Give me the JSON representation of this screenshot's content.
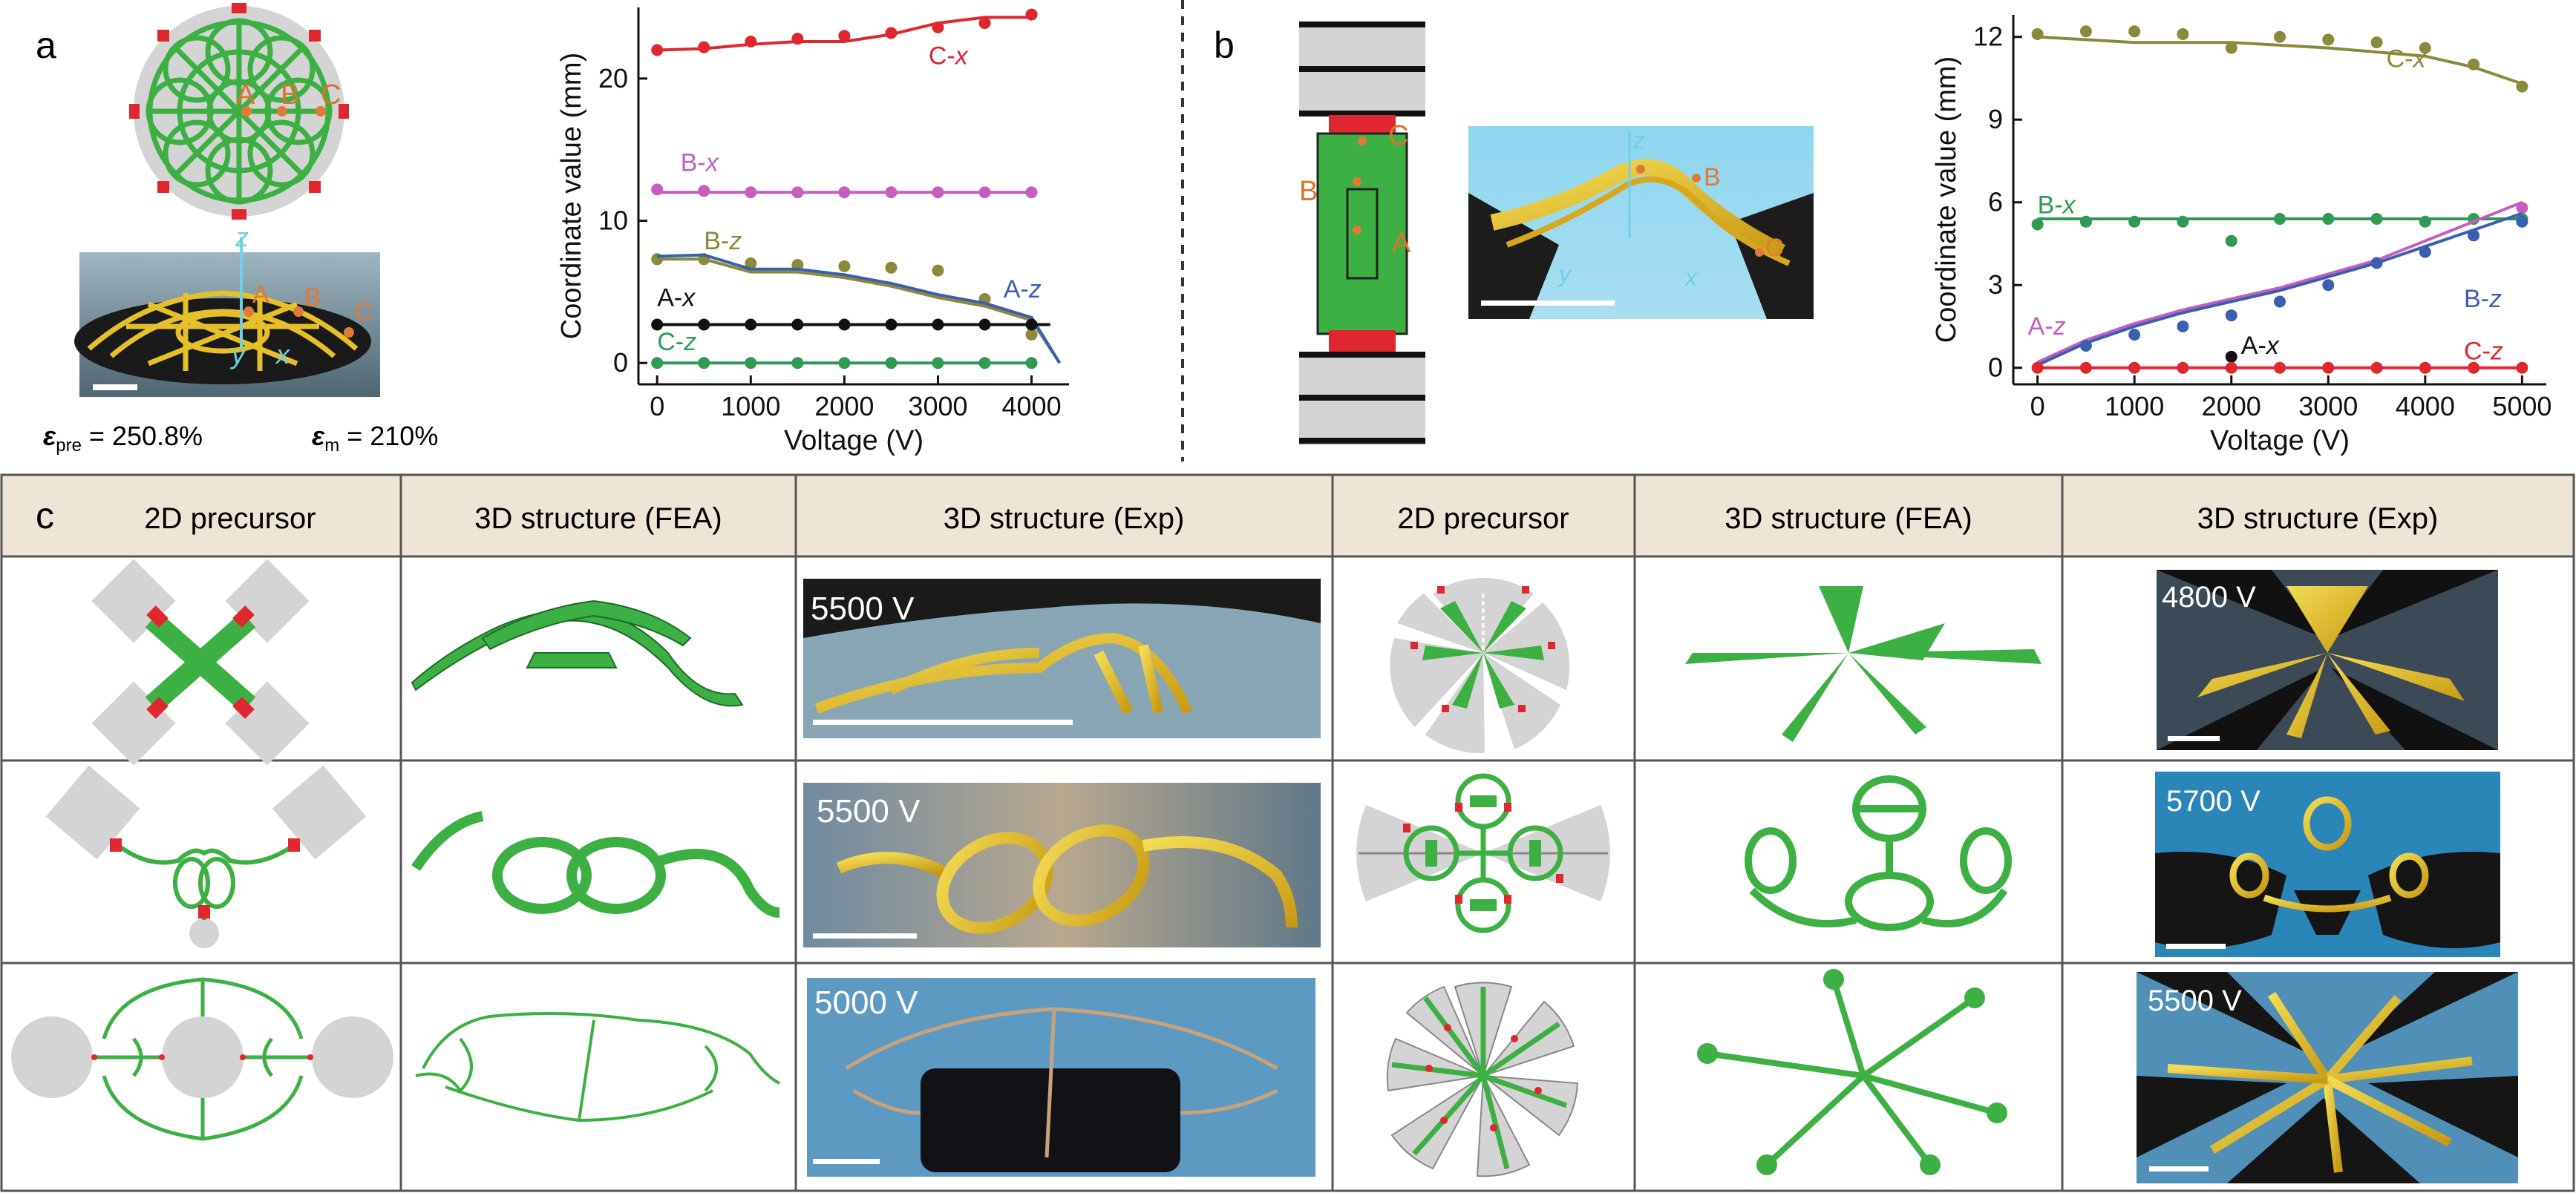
{
  "panel_a": {
    "label": "a",
    "points": [
      "A",
      "B",
      "C"
    ],
    "axes_3d": {
      "z": "z",
      "y": "y",
      "x": "x"
    },
    "eps_pre_symbol": "ε",
    "eps_pre_sub": "pre",
    "eps_pre_value": " = 250.8%",
    "eps_m_symbol": "ε",
    "eps_m_sub": "m",
    "eps_m_value": " = 210%"
  },
  "panel_b": {
    "label": "b",
    "points": [
      "A",
      "B",
      "C"
    ],
    "axes_3d": {
      "z": "z",
      "y": "y",
      "x": "x"
    }
  },
  "panel_c": {
    "label": "c",
    "headers": [
      "2D precursor",
      "3D structure (FEA)",
      "3D structure (Exp)",
      "2D precursor",
      "3D structure (FEA)",
      "3D structure (Exp)"
    ],
    "voltages_left": [
      "5500 V",
      "5500 V",
      "5000 V"
    ],
    "voltages_right": [
      "4800 V",
      "5700 V",
      "5500 V"
    ]
  },
  "colors": {
    "green_structure": "#3cb043",
    "anchor_red": "#e0262e",
    "substrate_gray": "#d4d4d4",
    "header_bg": "#efe5d6",
    "gold": "#e6c02a"
  },
  "chart_data": [
    {
      "type": "scatter",
      "panel": "a",
      "title": "",
      "xlabel": "Voltage (V)",
      "ylabel": "Coordinate value (mm)",
      "xlim": [
        -200,
        4400
      ],
      "ylim": [
        -1.5,
        25
      ],
      "xticks": [
        0,
        1000,
        2000,
        3000,
        4000
      ],
      "yticks": [
        0,
        10,
        20
      ],
      "grid": false,
      "series": [
        {
          "name": "C-x",
          "color": "#e0262e",
          "x": [
            0,
            500,
            1000,
            1500,
            2000,
            2500,
            3000,
            3500,
            4000
          ],
          "y": [
            22.0,
            22.2,
            22.6,
            22.8,
            23.0,
            23.2,
            23.6,
            23.9,
            24.5
          ],
          "fit_x": [
            0,
            500,
            1000,
            1500,
            2000,
            2500,
            3000,
            3500,
            4000
          ],
          "fit_y": [
            22.0,
            22.1,
            22.4,
            22.6,
            22.6,
            23.1,
            23.9,
            24.3,
            24.3
          ]
        },
        {
          "name": "B-x",
          "color": "#c45ec0",
          "x": [
            0,
            500,
            1000,
            1500,
            2000,
            2500,
            3000,
            3500,
            4000
          ],
          "y": [
            12.2,
            12.1,
            12.0,
            12.0,
            12.0,
            12.0,
            12.0,
            12.0,
            12.0
          ],
          "fit_x": [
            0,
            4000
          ],
          "fit_y": [
            12.0,
            12.0
          ]
        },
        {
          "name": "B-z",
          "color": "#8a8a3a",
          "x": [
            0,
            500,
            1000,
            1500,
            2000,
            2500,
            3000,
            3500,
            4000
          ],
          "y": [
            7.3,
            7.3,
            7.0,
            6.9,
            6.8,
            6.7,
            6.5,
            4.5,
            2.0
          ],
          "fit_x": [
            0,
            500,
            1000,
            1500,
            2000,
            2500,
            3000,
            3500,
            4000,
            4300
          ],
          "fit_y": [
            7.3,
            7.3,
            6.4,
            6.4,
            6.0,
            5.4,
            4.6,
            4.0,
            3.0,
            0.0
          ]
        },
        {
          "name": "A-z",
          "color": "#3b5fb0",
          "x": [],
          "y": [],
          "fit_x": [
            0,
            500,
            1000,
            1500,
            2000,
            2500,
            3000,
            3500,
            4000,
            4300
          ],
          "fit_y": [
            7.5,
            7.6,
            6.6,
            6.6,
            6.2,
            5.6,
            4.8,
            4.2,
            3.2,
            0.0
          ]
        },
        {
          "name": "A-x",
          "color": "#111111",
          "x": [
            0,
            500,
            1000,
            1500,
            2000,
            2500,
            3000,
            3500,
            4000
          ],
          "y": [
            2.7,
            2.7,
            2.7,
            2.7,
            2.7,
            2.7,
            2.7,
            2.7,
            2.7
          ],
          "fit_x": [
            0,
            4200
          ],
          "fit_y": [
            2.7,
            2.7
          ]
        },
        {
          "name": "C-z",
          "color": "#2e9a52",
          "x": [
            0,
            500,
            1000,
            1500,
            2000,
            2500,
            3000,
            3500,
            4000
          ],
          "y": [
            0,
            0,
            0,
            0,
            0,
            0,
            0,
            0,
            0
          ],
          "fit_x": [
            0,
            4000
          ],
          "fit_y": [
            0,
            0
          ]
        }
      ]
    },
    {
      "type": "scatter",
      "panel": "b",
      "title": "",
      "xlabel": "Voltage (V)",
      "ylabel": "Coordinate value (mm)",
      "xlim": [
        -250,
        5250
      ],
      "ylim": [
        -0.6,
        12.8
      ],
      "xticks": [
        0,
        1000,
        2000,
        3000,
        4000,
        5000
      ],
      "yticks": [
        0,
        3,
        6,
        9,
        12
      ],
      "grid": false,
      "series": [
        {
          "name": "C-x",
          "color": "#8a8a3a",
          "x": [
            0,
            500,
            1000,
            1500,
            2000,
            2500,
            3000,
            3500,
            4000,
            4500,
            5000
          ],
          "y": [
            12.1,
            12.2,
            12.2,
            12.1,
            11.6,
            12.0,
            11.9,
            11.8,
            11.6,
            11.0,
            10.2
          ],
          "fit_x": [
            0,
            1000,
            2000,
            3000,
            4000,
            4500,
            5000
          ],
          "fit_y": [
            12.0,
            11.8,
            11.8,
            11.6,
            11.3,
            10.9,
            10.3
          ]
        },
        {
          "name": "B-x",
          "color": "#2e9a52",
          "x": [
            0,
            500,
            1000,
            1500,
            2000,
            2500,
            3000,
            3500,
            4000,
            4500,
            5000
          ],
          "y": [
            5.2,
            5.3,
            5.3,
            5.3,
            4.6,
            5.4,
            5.4,
            5.4,
            5.3,
            5.4,
            5.4
          ],
          "fit_x": [
            0,
            5000
          ],
          "fit_y": [
            5.4,
            5.4
          ]
        },
        {
          "name": "A-z",
          "color": "#c45ec0",
          "x": [
            5000
          ],
          "y": [
            5.8
          ],
          "fit_x": [
            0,
            500,
            1000,
            1500,
            2000,
            2500,
            3000,
            3500,
            4000,
            4500,
            5000
          ],
          "fit_y": [
            0.2,
            1.0,
            1.6,
            2.1,
            2.5,
            2.9,
            3.4,
            3.9,
            4.6,
            5.3,
            6.0
          ]
        },
        {
          "name": "B-z",
          "color": "#3b5fb0",
          "x": [
            500,
            1000,
            1500,
            2000,
            2500,
            3000,
            3500,
            4000,
            4500,
            5000
          ],
          "y": [
            0.8,
            1.2,
            1.5,
            1.9,
            2.4,
            3.0,
            3.8,
            4.2,
            4.8,
            5.3
          ],
          "fit_x": [
            0,
            500,
            1000,
            1500,
            2000,
            2500,
            3000,
            3500,
            4000,
            4500,
            5000
          ],
          "fit_y": [
            0.1,
            0.9,
            1.5,
            2.0,
            2.4,
            2.8,
            3.3,
            3.8,
            4.4,
            5.0,
            5.6
          ]
        },
        {
          "name": "A-x",
          "color": "#111111",
          "x": [
            2000
          ],
          "y": [
            0.4
          ],
          "fit_x": [],
          "fit_y": []
        },
        {
          "name": "C-z",
          "color": "#e0262e",
          "x": [
            0,
            500,
            1000,
            1500,
            2000,
            2500,
            3000,
            3500,
            4000,
            4500,
            5000
          ],
          "y": [
            0,
            0,
            0,
            0,
            0,
            0,
            0,
            0,
            0,
            0,
            0
          ],
          "fit_x": [
            0,
            5000
          ],
          "fit_y": [
            0,
            0
          ]
        }
      ]
    }
  ]
}
